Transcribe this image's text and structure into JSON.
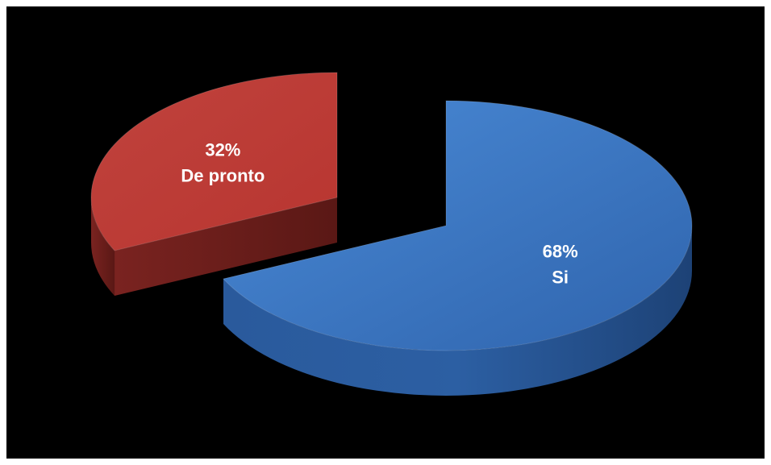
{
  "chart_data": {
    "type": "pie",
    "style": "3d-exploded",
    "slices": [
      {
        "category": "Si",
        "value": 68,
        "label": "68%",
        "color": "#3a78c8"
      },
      {
        "category": "De pronto",
        "value": 32,
        "label": "32%",
        "color": "#c03a35"
      }
    ],
    "legend": "none"
  }
}
